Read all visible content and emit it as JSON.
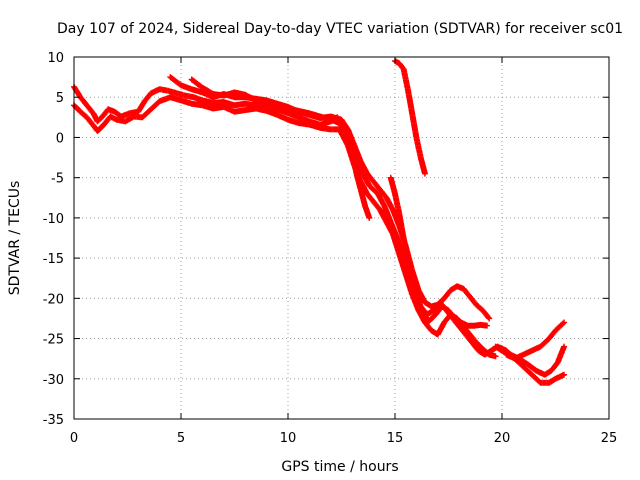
{
  "chart_data": {
    "type": "scatter",
    "title": "Day 107 of 2024, Sidereal Day-to-day VTEC variation (SDTVAR) for receiver sc01",
    "xlabel": "GPS time / hours",
    "ylabel": "SDTVAR / TECUs",
    "xlim": [
      0,
      25
    ],
    "ylim": [
      -35,
      10
    ],
    "xticks": [
      0,
      5,
      10,
      15,
      20,
      25
    ],
    "yticks": [
      10,
      5,
      0,
      -5,
      -10,
      -15,
      -20,
      -25,
      -30,
      -35
    ],
    "grid": true,
    "marker": "plus",
    "series": [
      {
        "name": "track-1",
        "color": "#ff0000",
        "points": [
          [
            0.0,
            6.3
          ],
          [
            0.3,
            5.0
          ],
          [
            0.6,
            4.0
          ],
          [
            0.9,
            3.0
          ],
          [
            1.1,
            2.0
          ],
          [
            1.3,
            2.5
          ],
          [
            1.6,
            3.5
          ],
          [
            1.9,
            3.2
          ],
          [
            2.2,
            2.6
          ],
          [
            2.6,
            3.0
          ],
          [
            3.0,
            3.2
          ],
          [
            3.3,
            4.5
          ],
          [
            3.6,
            5.5
          ],
          [
            4.0,
            6.0
          ],
          [
            4.4,
            5.8
          ],
          [
            4.8,
            5.5
          ],
          [
            5.2,
            5.2
          ],
          [
            5.6,
            5.0
          ],
          [
            6.0,
            4.6
          ],
          [
            6.5,
            4.3
          ],
          [
            7.0,
            4.4
          ],
          [
            7.5,
            4.0
          ],
          [
            8.0,
            4.2
          ],
          [
            8.5,
            4.0
          ],
          [
            9.0,
            3.8
          ],
          [
            9.5,
            3.5
          ],
          [
            10.0,
            3.0
          ],
          [
            10.5,
            2.5
          ],
          [
            11.0,
            2.0
          ],
          [
            11.5,
            1.6
          ],
          [
            12.0,
            2.0
          ],
          [
            12.3,
            2.5
          ],
          [
            12.6,
            1.5
          ],
          [
            12.8,
            0.0
          ],
          [
            13.0,
            -2.0
          ],
          [
            13.2,
            -4.5
          ],
          [
            13.4,
            -6.5
          ],
          [
            13.6,
            -8.5
          ],
          [
            13.8,
            -10.0
          ]
        ]
      },
      {
        "name": "track-2",
        "color": "#ff0000",
        "points": [
          [
            0.0,
            4.0
          ],
          [
            0.3,
            3.2
          ],
          [
            0.6,
            2.5
          ],
          [
            0.9,
            1.5
          ],
          [
            1.1,
            0.8
          ],
          [
            1.4,
            1.6
          ],
          [
            1.7,
            2.6
          ],
          [
            2.0,
            2.2
          ],
          [
            2.4,
            2.0
          ],
          [
            2.8,
            2.6
          ],
          [
            3.2,
            2.5
          ],
          [
            3.6,
            3.5
          ],
          [
            4.0,
            4.5
          ],
          [
            4.5,
            5.0
          ],
          [
            5.0,
            4.6
          ],
          [
            5.5,
            4.2
          ],
          [
            6.0,
            4.0
          ],
          [
            6.5,
            3.6
          ],
          [
            7.0,
            3.8
          ],
          [
            7.5,
            3.2
          ],
          [
            8.0,
            3.4
          ],
          [
            8.5,
            3.6
          ],
          [
            9.0,
            3.3
          ],
          [
            9.5,
            2.8
          ],
          [
            10.0,
            2.2
          ],
          [
            10.5,
            1.8
          ],
          [
            11.0,
            1.6
          ],
          [
            11.5,
            1.2
          ],
          [
            12.0,
            1.0
          ],
          [
            12.4,
            1.0
          ],
          [
            12.8,
            -1.0
          ],
          [
            13.1,
            -3.5
          ],
          [
            13.4,
            -5.5
          ],
          [
            13.7,
            -7.0
          ],
          [
            14.0,
            -8.0
          ],
          [
            14.3,
            -9.0
          ],
          [
            14.6,
            -10.5
          ],
          [
            14.9,
            -12.0
          ],
          [
            15.2,
            -14.5
          ],
          [
            15.5,
            -17.0
          ],
          [
            15.8,
            -19.5
          ],
          [
            16.1,
            -21.5
          ],
          [
            16.4,
            -23.0
          ],
          [
            16.7,
            -24.0
          ],
          [
            17.0,
            -24.5
          ],
          [
            17.3,
            -23.0
          ],
          [
            17.6,
            -22.0
          ],
          [
            17.9,
            -22.5
          ],
          [
            18.2,
            -23.5
          ],
          [
            18.5,
            -24.5
          ],
          [
            18.8,
            -25.5
          ],
          [
            19.1,
            -26.3
          ],
          [
            19.4,
            -27.0
          ],
          [
            19.7,
            -27.2
          ]
        ]
      },
      {
        "name": "track-3",
        "color": "#ff0000",
        "points": [
          [
            4.5,
            7.5
          ],
          [
            5.0,
            6.5
          ],
          [
            5.5,
            6.0
          ],
          [
            6.0,
            5.6
          ],
          [
            6.5,
            5.0
          ],
          [
            7.0,
            5.4
          ],
          [
            7.5,
            5.0
          ],
          [
            8.0,
            5.0
          ],
          [
            8.5,
            4.8
          ],
          [
            9.0,
            4.6
          ],
          [
            9.5,
            4.2
          ],
          [
            10.0,
            3.8
          ],
          [
            10.5,
            3.2
          ],
          [
            11.0,
            2.8
          ],
          [
            11.5,
            2.4
          ],
          [
            12.0,
            2.6
          ],
          [
            12.5,
            2.2
          ],
          [
            12.8,
            1.0
          ],
          [
            13.1,
            -1.0
          ],
          [
            13.4,
            -3.0
          ],
          [
            13.7,
            -4.5
          ],
          [
            14.0,
            -5.5
          ],
          [
            14.3,
            -6.5
          ],
          [
            14.6,
            -7.5
          ],
          [
            14.9,
            -9.0
          ],
          [
            15.2,
            -11.0
          ],
          [
            15.5,
            -13.5
          ],
          [
            15.8,
            -16.5
          ],
          [
            16.1,
            -19.0
          ],
          [
            16.4,
            -20.5
          ],
          [
            16.7,
            -21.0
          ],
          [
            17.0,
            -20.8
          ],
          [
            17.3,
            -20.0
          ],
          [
            17.6,
            -19.0
          ],
          [
            17.9,
            -18.5
          ],
          [
            18.2,
            -18.8
          ],
          [
            18.5,
            -19.8
          ],
          [
            18.8,
            -20.8
          ],
          [
            19.1,
            -21.5
          ],
          [
            19.4,
            -22.5
          ]
        ]
      },
      {
        "name": "track-4",
        "color": "#ff0000",
        "points": [
          [
            5.5,
            7.2
          ],
          [
            6.0,
            6.2
          ],
          [
            6.5,
            5.4
          ],
          [
            7.0,
            5.2
          ],
          [
            7.5,
            5.6
          ],
          [
            8.0,
            5.3
          ],
          [
            8.5,
            4.6
          ],
          [
            9.0,
            4.0
          ],
          [
            9.5,
            4.0
          ],
          [
            10.0,
            3.6
          ],
          [
            10.5,
            3.3
          ],
          [
            11.0,
            3.0
          ],
          [
            11.5,
            2.6
          ],
          [
            12.0,
            2.2
          ],
          [
            12.4,
            1.8
          ],
          [
            12.8,
            0.0
          ],
          [
            13.1,
            -2.0
          ],
          [
            13.4,
            -4.0
          ],
          [
            13.8,
            -6.0
          ],
          [
            14.2,
            -7.0
          ],
          [
            14.5,
            -8.5
          ],
          [
            14.8,
            -10.5
          ],
          [
            15.1,
            -12.5
          ],
          [
            15.4,
            -15.0
          ],
          [
            15.7,
            -18.0
          ],
          [
            16.0,
            -20.5
          ],
          [
            16.3,
            -22.0
          ],
          [
            16.6,
            -22.8
          ],
          [
            16.9,
            -22.0
          ],
          [
            17.2,
            -21.0
          ],
          [
            17.5,
            -21.5
          ],
          [
            17.8,
            -22.5
          ],
          [
            18.1,
            -23.0
          ],
          [
            18.4,
            -23.4
          ],
          [
            18.7,
            -23.4
          ],
          [
            19.0,
            -23.3
          ],
          [
            19.3,
            -23.4
          ]
        ]
      },
      {
        "name": "track-5",
        "color": "#ff0000",
        "points": [
          [
            14.8,
            -5.0
          ],
          [
            15.0,
            -7.0
          ],
          [
            15.2,
            -9.5
          ],
          [
            15.4,
            -12.5
          ],
          [
            15.6,
            -15.0
          ],
          [
            15.8,
            -17.5
          ],
          [
            16.0,
            -19.5
          ],
          [
            16.2,
            -21.0
          ],
          [
            16.5,
            -22.0
          ],
          [
            16.8,
            -21.5
          ],
          [
            17.1,
            -20.5
          ],
          [
            17.4,
            -21.5
          ],
          [
            17.7,
            -22.5
          ],
          [
            18.0,
            -23.5
          ],
          [
            18.3,
            -24.5
          ],
          [
            18.6,
            -25.5
          ],
          [
            18.9,
            -26.5
          ],
          [
            19.2,
            -27.0
          ],
          [
            19.5,
            -26.5
          ],
          [
            19.8,
            -26.0
          ],
          [
            20.2,
            -26.5
          ],
          [
            20.6,
            -27.5
          ],
          [
            21.0,
            -28.5
          ],
          [
            21.4,
            -29.5
          ],
          [
            21.8,
            -30.5
          ],
          [
            22.2,
            -30.5
          ],
          [
            22.5,
            -30.0
          ],
          [
            22.9,
            -29.5
          ]
        ]
      },
      {
        "name": "track-6",
        "color": "#ff0000",
        "points": [
          [
            19.7,
            -26.0
          ],
          [
            20.0,
            -26.5
          ],
          [
            20.4,
            -27.0
          ],
          [
            20.8,
            -27.5
          ],
          [
            21.2,
            -28.2
          ],
          [
            21.6,
            -29.0
          ],
          [
            22.0,
            -29.5
          ],
          [
            22.3,
            -29.0
          ],
          [
            22.6,
            -28.0
          ],
          [
            22.9,
            -26.0
          ]
        ]
      },
      {
        "name": "track-7",
        "color": "#ff0000",
        "points": [
          [
            20.2,
            -27.0
          ],
          [
            20.6,
            -27.5
          ],
          [
            21.0,
            -27.0
          ],
          [
            21.4,
            -26.5
          ],
          [
            21.8,
            -26.0
          ],
          [
            22.2,
            -25.0
          ],
          [
            22.5,
            -24.0
          ],
          [
            22.9,
            -23.0
          ]
        ]
      },
      {
        "name": "track-8",
        "color": "#ff0000",
        "points": [
          [
            15.0,
            9.5
          ],
          [
            15.2,
            9.2
          ],
          [
            15.4,
            8.5
          ],
          [
            15.6,
            6.0
          ],
          [
            15.8,
            3.0
          ],
          [
            16.0,
            0.0
          ],
          [
            16.2,
            -2.5
          ],
          [
            16.4,
            -4.5
          ]
        ]
      }
    ]
  }
}
